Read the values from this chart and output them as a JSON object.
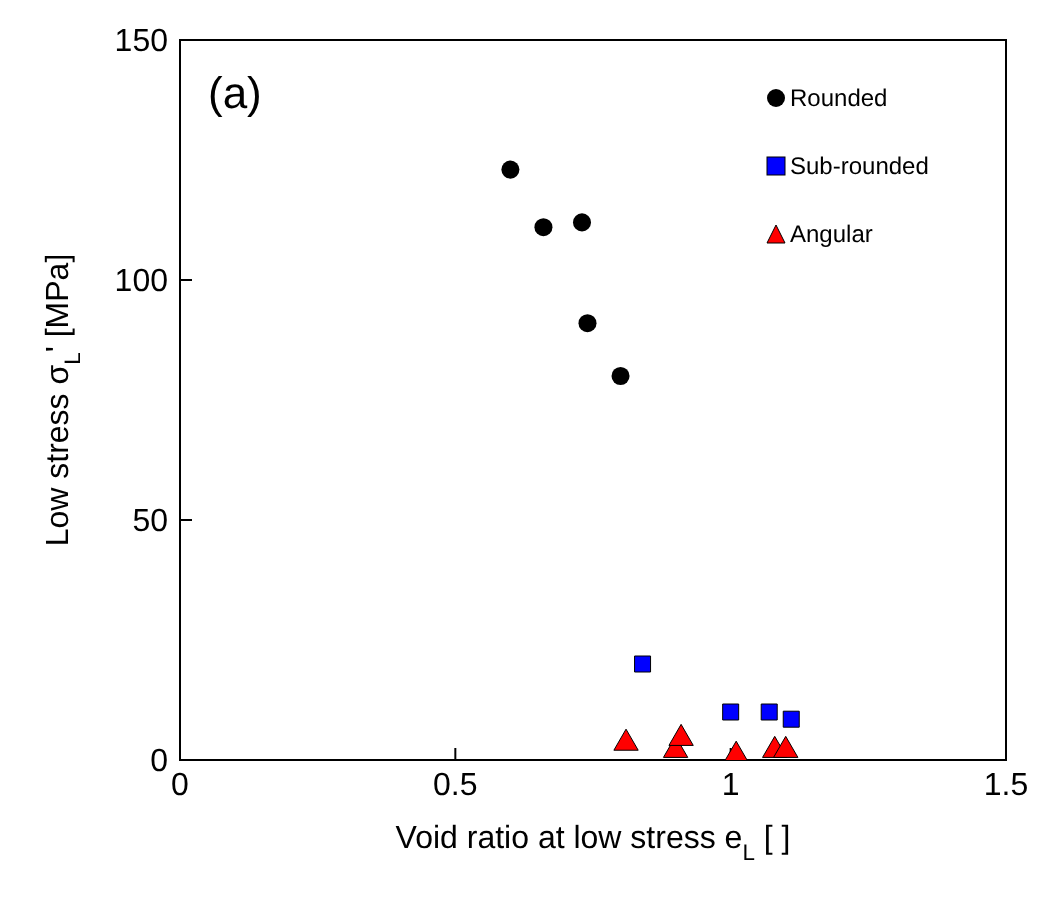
{
  "chart_data": {
    "type": "scatter",
    "xlabel": "Void ratio at low stress e$_{L}$ [ ]",
    "ylabel": "Low stress σ$_{L}$' [MPa]",
    "annotations": [
      "(a)"
    ],
    "xlim": [
      0,
      1.5
    ],
    "xticks": [
      0,
      0.5,
      1,
      1.5
    ],
    "ylim": [
      0,
      150
    ],
    "yticks": [
      0,
      50,
      100,
      150
    ],
    "grid": false,
    "legend": "top right",
    "series": [
      {
        "name": "Rounded",
        "color": "#000000",
        "marker": "circle",
        "x": [
          0.6,
          0.66,
          0.73,
          0.74,
          0.8
        ],
        "values": [
          123,
          111,
          112,
          91,
          80
        ]
      },
      {
        "name": "Sub-rounded",
        "color": "#0000ff",
        "marker": "square",
        "x": [
          0.84,
          1.0,
          1.07,
          1.11
        ],
        "values": [
          20,
          10,
          10,
          8.5
        ]
      },
      {
        "name": "Angular",
        "color": "#ff0000",
        "marker": "triangle",
        "x": [
          0.81,
          0.9,
          0.91,
          1.01,
          1.08,
          1.1
        ],
        "values": [
          3.5,
          2,
          4.5,
          1,
          2,
          2
        ]
      }
    ]
  }
}
